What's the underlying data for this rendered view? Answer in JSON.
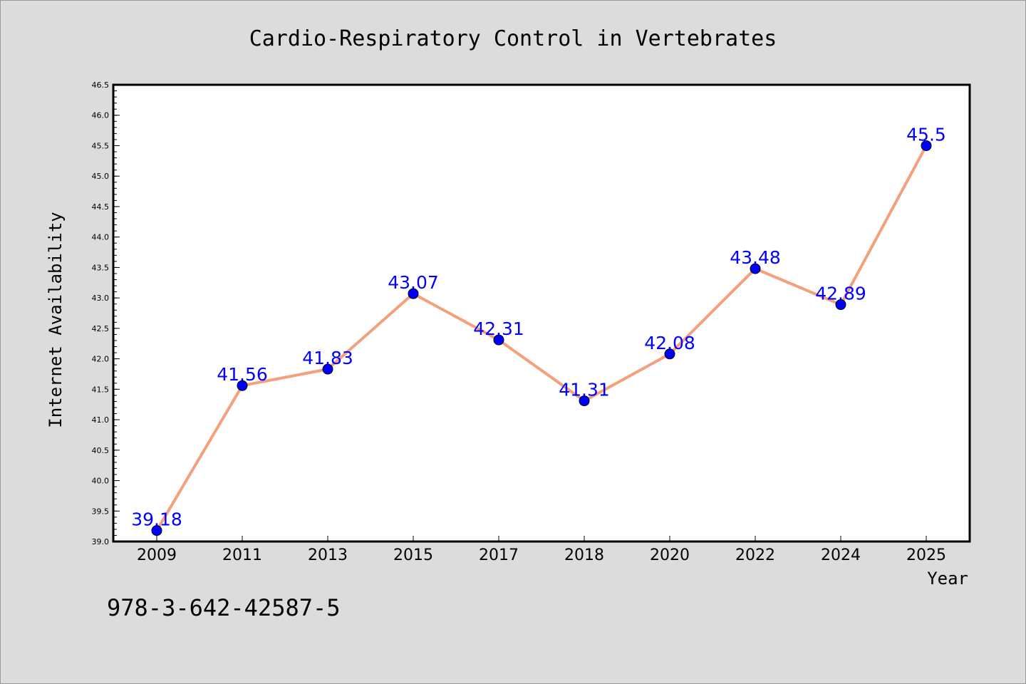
{
  "chart_data": {
    "type": "line",
    "title": "Cardio-Respiratory Control in Vertebrates",
    "xlabel": "Year",
    "ylabel": "Internet Availability",
    "categories": [
      "2009",
      "2011",
      "2013",
      "2015",
      "2017",
      "2018",
      "2020",
      "2022",
      "2024",
      "2025"
    ],
    "series": [
      {
        "values": [
          39.18,
          41.56,
          41.83,
          43.07,
          42.31,
          41.31,
          42.08,
          43.48,
          42.89,
          45.5
        ],
        "labels": [
          "39.18",
          "41.56",
          "41.83",
          "43.07",
          "42.31",
          "41.31",
          "42.08",
          "43.48",
          "42.89",
          "45.5"
        ],
        "line_color": "#f4a07c",
        "marker_color": "#0000ff"
      }
    ],
    "ylim": [
      39.0,
      46.5
    ],
    "yticks": [
      "39.0",
      "39.5",
      "40.0",
      "40.5",
      "41.0",
      "41.5",
      "42.0",
      "42.5",
      "43.0",
      "43.5",
      "44.0",
      "44.5",
      "45.0",
      "45.5",
      "46.0",
      "46.5"
    ],
    "grid": false,
    "legend": "none"
  },
  "annotation": "978-3-642-42587-5"
}
